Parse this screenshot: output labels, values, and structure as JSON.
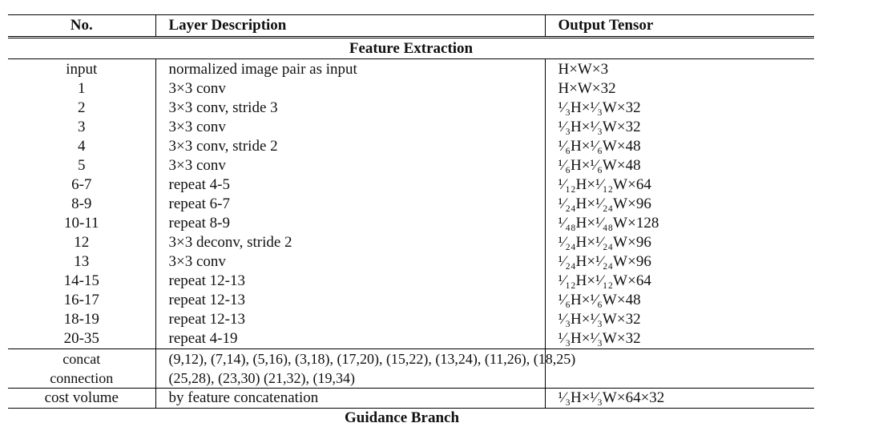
{
  "table": {
    "headers": [
      "No.",
      "Layer Description",
      "Output Tensor"
    ],
    "section_title": "Feature Extraction",
    "rows": [
      {
        "no": "input",
        "desc": "normalized image pair as input",
        "out": "H×W×3"
      },
      {
        "no": "1",
        "desc": "3×3 conv",
        "out": "H×W×32"
      },
      {
        "no": "2",
        "desc": "3×3 conv, stride 3",
        "out": "¹⁄₃H×¹⁄₃W×32"
      },
      {
        "no": "3",
        "desc": "3×3 conv",
        "out": "¹⁄₃H×¹⁄₃W×32"
      },
      {
        "no": "4",
        "desc": "3×3 conv, stride 2",
        "out": "¹⁄₆H×¹⁄₆W×48"
      },
      {
        "no": "5",
        "desc": "3×3 conv",
        "out": "¹⁄₆H×¹⁄₆W×48"
      },
      {
        "no": "6-7",
        "desc": "repeat 4-5",
        "out": "¹⁄₁₂H×¹⁄₁₂W×64"
      },
      {
        "no": "8-9",
        "desc": "repeat 6-7",
        "out": "¹⁄₂₄H×¹⁄₂₄W×96"
      },
      {
        "no": "10-11",
        "desc": "repeat 8-9",
        "out": "¹⁄₄₈H×¹⁄₄₈W×128"
      },
      {
        "no": "12",
        "desc": "3×3 deconv, stride 2",
        "out": "¹⁄₂₄H×¹⁄₂₄W×96"
      },
      {
        "no": "13",
        "desc": "3×3 conv",
        "out": "¹⁄₂₄H×¹⁄₂₄W×96"
      },
      {
        "no": "14-15",
        "desc": "repeat 12-13",
        "out": "¹⁄₁₂H×¹⁄₁₂W×64"
      },
      {
        "no": "16-17",
        "desc": "repeat 12-13",
        "out": "¹⁄₆H×¹⁄₆W×48"
      },
      {
        "no": "18-19",
        "desc": "repeat 12-13",
        "out": "¹⁄₃H×¹⁄₃W×32"
      },
      {
        "no": "20-35",
        "desc": "repeat 4-19",
        "out": "¹⁄₃H×¹⁄₃W×32"
      }
    ],
    "concat": {
      "no_line1": "concat",
      "no_line2": "connection",
      "desc_line1": "(9,12), (7,14), (5,16), (3,18), (17,20), (15,22), (13,24), (11,26), (18,25)",
      "desc_line2": "(25,28), (23,30) (21,32), (19,34)",
      "out": ""
    },
    "cost_volume": {
      "no": "cost volume",
      "desc": "by feature concatenation",
      "out": "¹⁄₃H×¹⁄₃W×64×32"
    },
    "next_section_partial": "Guidance Branch"
  }
}
